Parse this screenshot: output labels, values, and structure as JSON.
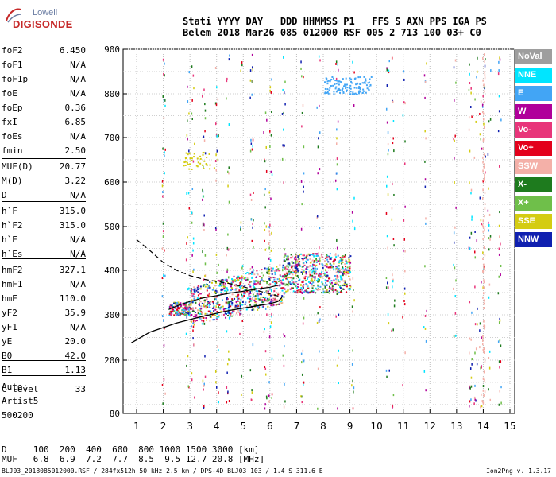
{
  "logo": {
    "line1": "Lowell",
    "line2": "DIGISONDE"
  },
  "header": {
    "row1": "Stati YYYY DAY   DDD HHMMSS P1   FFS S AXN PPS IGA PS",
    "row2": "Belem 2018 Mar26 085 012000 RSF 005 2 713 100 03+ C0"
  },
  "params": [
    {
      "name": "foF2",
      "value": "6.450"
    },
    {
      "name": "foF1",
      "value": "N/A"
    },
    {
      "name": "foF1p",
      "value": "N/A"
    },
    {
      "name": "foE",
      "value": "N/A"
    },
    {
      "name": "foEp",
      "value": "0.36"
    },
    {
      "name": "fxI",
      "value": "6.85"
    },
    {
      "name": "foEs",
      "value": "N/A"
    },
    {
      "name": "fmin",
      "value": "2.50"
    },
    {
      "name": "MUF(D)",
      "value": "20.77"
    },
    {
      "name": "M(D)",
      "value": "3.22"
    },
    {
      "name": "D",
      "value": "N/A"
    },
    {
      "name": "h`F",
      "value": "315.0"
    },
    {
      "name": "h`F2",
      "value": "315.0"
    },
    {
      "name": "h`E",
      "value": "N/A"
    },
    {
      "name": "h`Es",
      "value": "N/A"
    },
    {
      "name": "hmF2",
      "value": "327.1"
    },
    {
      "name": "hmF1",
      "value": "N/A"
    },
    {
      "name": "hmE",
      "value": "110.0"
    },
    {
      "name": "yF2",
      "value": "35.9"
    },
    {
      "name": "yF1",
      "value": "N/A"
    },
    {
      "name": "yE",
      "value": "20.0"
    },
    {
      "name": "B0",
      "value": "42.0"
    },
    {
      "name": "B1",
      "value": "1.13"
    },
    {
      "name": "C-level",
      "value": "33"
    }
  ],
  "aux": {
    "auto": "Auto:",
    "artist": "Artist5",
    "code": "500200"
  },
  "legend": [
    {
      "label": "NoVal",
      "color": "#9e9e9e"
    },
    {
      "label": "NNE",
      "color": "#00e5ff"
    },
    {
      "label": "E",
      "color": "#42a5f5"
    },
    {
      "label": "W",
      "color": "#b0009a"
    },
    {
      "label": "Vo-",
      "color": "#e8357a"
    },
    {
      "label": "Vo+",
      "color": "#e3001b"
    },
    {
      "label": "SSW",
      "color": "#f4b0a8"
    },
    {
      "label": "X-",
      "color": "#1e7b1e"
    },
    {
      "label": "X+",
      "color": "#6fbf4a"
    },
    {
      "label": "SSE",
      "color": "#d4cc12"
    },
    {
      "label": "NNW",
      "color": "#1020b0"
    }
  ],
  "bottom": {
    "row1": "D     100  200  400  600  800 1000 1500 3000 [km]",
    "row2": "MUF   6.8  6.9  7.2  7.7  8.5  9.5 12.7 20.8 [MHz]"
  },
  "footer": "BLJ03_2018085012000.RSF / 284fx512h 50 kHz 2.5 km / DPS-4D BLJ03 103 / 1.4 S 311.6 E",
  "version": "Ion2Png v. 1.3.17",
  "chart_data": {
    "type": "scatter",
    "x_ticks": [
      "1",
      "2",
      "3",
      "4",
      "5",
      "6",
      "7",
      "8",
      "9",
      "10",
      "11",
      "12",
      "13",
      "14",
      "15"
    ],
    "y_ticks": [
      "80",
      "200",
      "300",
      "400",
      "500",
      "600",
      "700",
      "800",
      "900"
    ],
    "xlim": [
      1,
      15
    ],
    "ylim": [
      80,
      900
    ],
    "grid": true,
    "traces": {
      "profile_solid": [
        [
          0.8,
          238
        ],
        [
          1.5,
          262
        ],
        [
          2.5,
          282
        ],
        [
          3.5,
          297
        ],
        [
          4.5,
          310
        ],
        [
          5.5,
          320
        ],
        [
          6.0,
          325
        ],
        [
          6.3,
          330
        ],
        [
          6.45,
          339
        ]
      ],
      "profile_dashed": [
        [
          1.0,
          470
        ],
        [
          1.5,
          445
        ],
        [
          2.0,
          418
        ],
        [
          2.5,
          400
        ],
        [
          3.0,
          388
        ],
        [
          3.5,
          380
        ],
        [
          4.0,
          375
        ],
        [
          4.5,
          370
        ],
        [
          5.0,
          363
        ],
        [
          5.5,
          355
        ],
        [
          6.0,
          347
        ],
        [
          6.45,
          340
        ]
      ],
      "trace_main": [
        [
          2.2,
          312
        ],
        [
          2.6,
          322
        ],
        [
          3.0,
          330
        ],
        [
          3.5,
          338
        ],
        [
          4.0,
          343
        ],
        [
          4.5,
          349
        ],
        [
          5.0,
          353
        ],
        [
          5.5,
          358
        ],
        [
          6.0,
          362
        ],
        [
          6.4,
          368
        ]
      ]
    }
  }
}
